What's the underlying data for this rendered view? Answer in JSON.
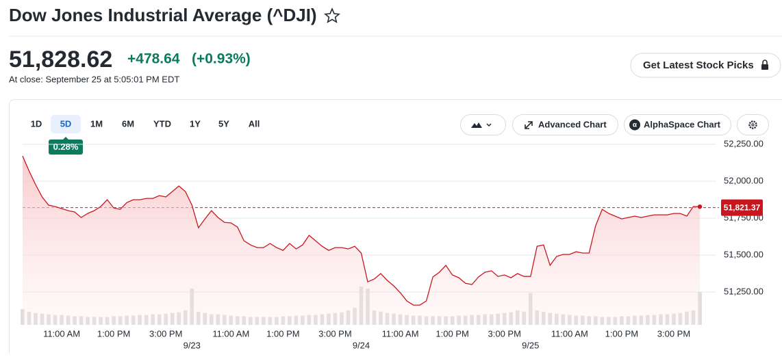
{
  "header": {
    "title": "Dow Jones Industrial Average (^DJI)"
  },
  "quote": {
    "price": "51,828.62",
    "change": "+478.64",
    "change_percent": "(+0.93%)",
    "close_time": "At close: September 25 at 5:05:01 PM EDT"
  },
  "buttons": {
    "stock_picks": "Get Latest Stock Picks",
    "advanced_chart": "Advanced Chart",
    "alphaspace_chart": "AlphaSpace Chart"
  },
  "tabs": {
    "items": [
      "1D",
      "5D",
      "1M",
      "6M",
      "YTD",
      "1Y",
      "5Y",
      "All"
    ],
    "selected": 1,
    "badge": "0.28%"
  },
  "chart_data": {
    "type": "line",
    "color": "#c7161e",
    "values": [
      52171,
      52069,
      51977,
      51894,
      51838,
      51829,
      51815,
      51801,
      51792,
      51755,
      51782,
      51801,
      51829,
      51875,
      51819,
      51810,
      51856,
      51875,
      51875,
      51884,
      51884,
      51903,
      51894,
      51931,
      51968,
      51931,
      51838,
      51685,
      51745,
      51801,
      51755,
      51722,
      51718,
      51690,
      51597,
      51569,
      51551,
      51551,
      51579,
      51551,
      51532,
      51579,
      51542,
      51569,
      51634,
      51597,
      51560,
      51532,
      51551,
      51551,
      51542,
      51560,
      51514,
      51319,
      51338,
      51375,
      51329,
      51292,
      51245,
      51190,
      51162,
      51162,
      51190,
      51352,
      51384,
      51431,
      51366,
      51347,
      51310,
      51301,
      51352,
      51384,
      51394,
      51356,
      51366,
      51347,
      51375,
      51356,
      51356,
      51560,
      51569,
      51431,
      51491,
      51505,
      51505,
      51523,
      51514,
      51514,
      51699,
      51810,
      51782,
      51764,
      51745,
      51755,
      51764,
      51755,
      51764,
      51773,
      51773,
      51773,
      51782,
      51782,
      51764,
      51829,
      51828
    ],
    "volume": [
      24,
      20,
      18,
      17,
      16,
      15,
      15,
      14,
      13,
      13,
      12,
      12,
      12,
      12,
      13,
      13,
      14,
      14,
      15,
      15,
      16,
      16,
      17,
      18,
      19,
      22,
      55,
      20,
      18,
      16,
      16,
      15,
      14,
      13,
      13,
      12,
      12,
      12,
      12,
      12,
      13,
      13,
      14,
      14,
      15,
      15,
      16,
      17,
      18,
      19,
      22,
      26,
      58,
      55,
      22,
      20,
      18,
      17,
      16,
      15,
      14,
      14,
      13,
      13,
      13,
      13,
      13,
      14,
      14,
      15,
      15,
      16,
      16,
      17,
      18,
      19,
      22,
      20,
      48,
      22,
      20,
      18,
      17,
      16,
      15,
      14,
      14,
      13,
      13,
      12,
      12,
      12,
      13,
      13,
      14,
      14,
      15,
      15,
      16,
      16,
      17,
      18,
      20,
      22,
      50
    ],
    "volume_color": "#dcdcdc",
    "xlim": [
      0,
      104
    ],
    "ylim": [
      51028,
      52278
    ],
    "yticks": [
      {
        "value": 52250,
        "label": "52,250.00"
      },
      {
        "value": 52000,
        "label": "52,000.00"
      },
      {
        "value": 51750,
        "label": "51,750.00"
      },
      {
        "value": 51500,
        "label": "51,500.00"
      },
      {
        "value": 51250,
        "label": "51,250.00"
      }
    ],
    "xticks": [
      {
        "value": 6,
        "label": "11:00 AM"
      },
      {
        "value": 14,
        "label": "1:00 PM"
      },
      {
        "value": 22,
        "label": "3:00 PM"
      },
      {
        "value": 32,
        "label": "11:00 AM"
      },
      {
        "value": 40,
        "label": "1:00 PM"
      },
      {
        "value": 48,
        "label": "3:00 PM"
      },
      {
        "value": 58,
        "label": "11:00 AM"
      },
      {
        "value": 66,
        "label": "1:00 PM"
      },
      {
        "value": 74,
        "label": "3:00 PM"
      },
      {
        "value": 84,
        "label": "11:00 AM"
      },
      {
        "value": 92,
        "label": "1:00 PM"
      },
      {
        "value": 100,
        "label": "3:00 PM"
      }
    ],
    "date_ticks": [
      {
        "value": 26,
        "label": "9/23"
      },
      {
        "value": 52,
        "label": "9/24"
      },
      {
        "value": 78,
        "label": "9/25"
      }
    ],
    "reference_line": {
      "value": 51821.37,
      "label": "51,821.37"
    },
    "grid": true
  }
}
